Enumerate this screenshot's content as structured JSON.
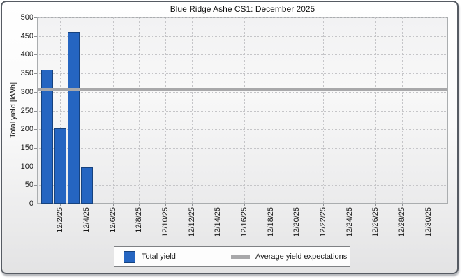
{
  "window": {
    "title": "Blue Ridge Ashe CS1: December 2025"
  },
  "chart_data": {
    "type": "bar",
    "title": "Blue Ridge Ashe CS1: December 2025",
    "xlabel": "",
    "ylabel": "Total yield [kWh]",
    "ylim": [
      0,
      500
    ],
    "ytick_step": 50,
    "yticks": [
      0,
      50,
      100,
      150,
      200,
      250,
      300,
      350,
      400,
      450,
      500
    ],
    "x_domain_days": 31,
    "grid": true,
    "legend_position": "bottom",
    "xticks": [
      {
        "day": 2,
        "label": "12/2/25"
      },
      {
        "day": 4,
        "label": "12/4/25"
      },
      {
        "day": 6,
        "label": "12/6/25"
      },
      {
        "day": 8,
        "label": "12/8/25"
      },
      {
        "day": 10,
        "label": "12/10/25"
      },
      {
        "day": 12,
        "label": "12/12/25"
      },
      {
        "day": 14,
        "label": "12/14/25"
      },
      {
        "day": 16,
        "label": "12/16/25"
      },
      {
        "day": 18,
        "label": "12/18/25"
      },
      {
        "day": 20,
        "label": "12/20/25"
      },
      {
        "day": 22,
        "label": "12/22/25"
      },
      {
        "day": 24,
        "label": "12/24/25"
      },
      {
        "day": 26,
        "label": "12/26/25"
      },
      {
        "day": 28,
        "label": "12/28/25"
      },
      {
        "day": 30,
        "label": "12/30/25"
      }
    ],
    "series": [
      {
        "name": "Total yield",
        "type": "bar",
        "color": "#2565c1",
        "border_color": "#16427e",
        "points": [
          {
            "day": 1,
            "value": 360
          },
          {
            "day": 2,
            "value": 202
          },
          {
            "day": 3,
            "value": 460
          },
          {
            "day": 4,
            "value": 98
          }
        ]
      },
      {
        "name": "Average yield expectations",
        "type": "hline",
        "color": "#a8a8aa",
        "value": 307
      }
    ]
  }
}
